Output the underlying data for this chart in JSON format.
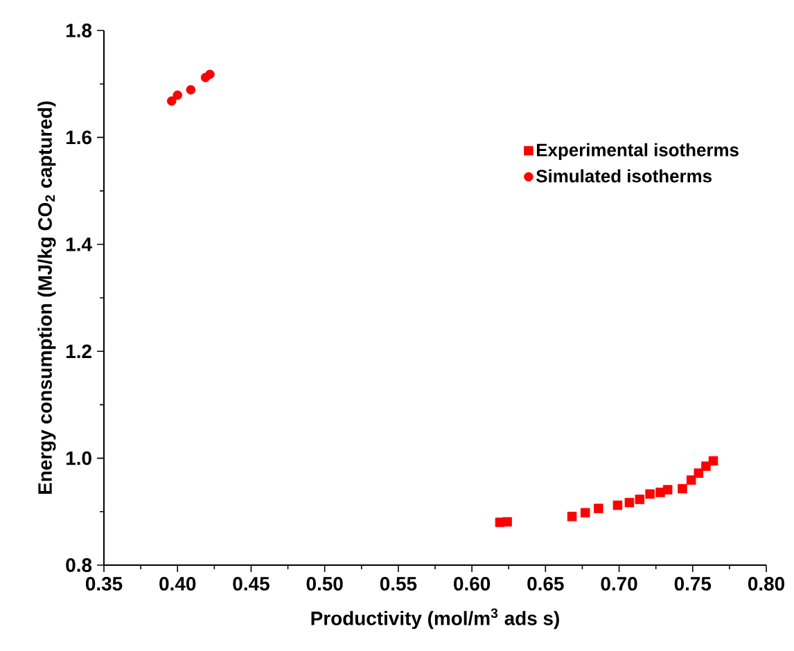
{
  "chart_data": {
    "type": "scatter",
    "xlabel": "Productivity (mol/m$^{3}$ ads s)",
    "ylabel": "Energy consumption (MJ/kg CO$_{2}$ captured)",
    "xlim": [
      0.35,
      0.8
    ],
    "xticks": [
      {
        "value": 0.35,
        "label": "0.35"
      },
      {
        "value": 0.4,
        "label": "0.40"
      },
      {
        "value": 0.45,
        "label": "0.45"
      },
      {
        "value": 0.5,
        "label": "0.50"
      },
      {
        "value": 0.55,
        "label": "0.55"
      },
      {
        "value": 0.6,
        "label": "0.60"
      },
      {
        "value": 0.65,
        "label": "0.65"
      },
      {
        "value": 0.7,
        "label": "0.70"
      },
      {
        "value": 0.75,
        "label": "0.75"
      },
      {
        "value": 0.8,
        "label": "0.80"
      }
    ],
    "ylim": [
      0.8,
      1.8
    ],
    "yticks": [
      {
        "value": 0.8,
        "label": "0.8"
      },
      {
        "value": 1.0,
        "label": "1.0"
      },
      {
        "value": 1.2,
        "label": "1.2"
      },
      {
        "value": 1.4,
        "label": "1.4"
      },
      {
        "value": 1.6,
        "label": "1.6"
      },
      {
        "value": 1.8,
        "label": "1.8"
      }
    ],
    "legend": "top right",
    "grid": false,
    "series": [
      {
        "name": "Experimental isotherms",
        "color": "#ff0000",
        "marker": "square",
        "x": [
          0.619,
          0.624,
          0.668,
          0.677,
          0.686,
          0.699,
          0.707,
          0.714,
          0.721,
          0.728,
          0.733,
          0.743,
          0.749,
          0.754,
          0.759,
          0.764
        ],
        "values": [
          0.88,
          0.881,
          0.891,
          0.898,
          0.906,
          0.912,
          0.917,
          0.923,
          0.933,
          0.936,
          0.941,
          0.943,
          0.959,
          0.972,
          0.985,
          0.995
        ]
      },
      {
        "name": "Simulated isotherms",
        "color": "#ff0000",
        "marker": "circle",
        "x": [
          0.396,
          0.4,
          0.409,
          0.419,
          0.422
        ],
        "values": [
          1.668,
          1.679,
          1.689,
          1.712,
          1.718
        ]
      }
    ]
  }
}
